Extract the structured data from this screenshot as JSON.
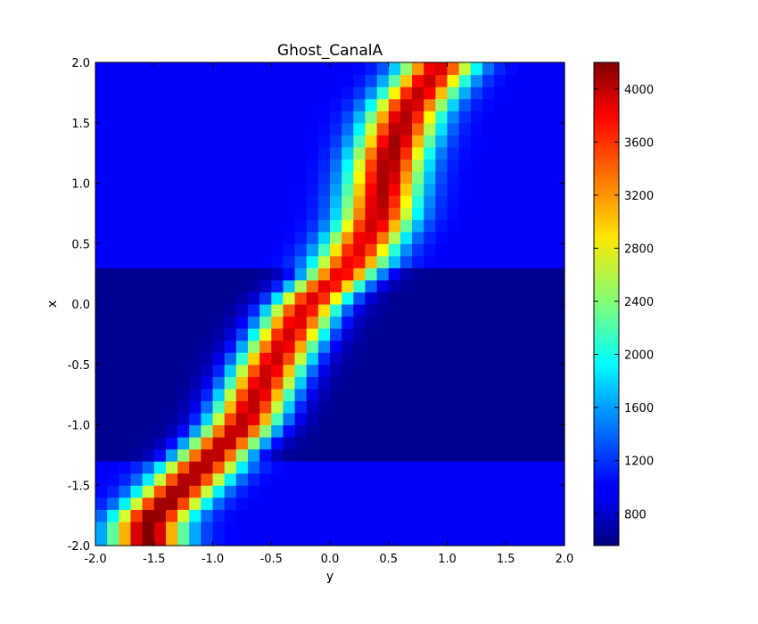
{
  "chart_data": {
    "type": "heatmap",
    "title": "Ghost_CanalA",
    "xlabel": "y",
    "ylabel": "x",
    "xlim": [
      -2.0,
      2.0
    ],
    "ylim": [
      -2.0,
      2.0
    ],
    "grid": false,
    "colormap": "jet",
    "color_range": [
      560,
      4200
    ],
    "x_ticks": [
      "-2.0",
      "-1.5",
      "-1.0",
      "-0.5",
      "0.0",
      "0.5",
      "1.0",
      "1.5",
      "2.0"
    ],
    "y_ticks": [
      "-2.0",
      "-1.5",
      "-1.0",
      "-0.5",
      "0.0",
      "0.5",
      "1.0",
      "1.5",
      "2.0"
    ],
    "colorbar_ticks": [
      "800",
      "1200",
      "1600",
      "2000",
      "2400",
      "2800",
      "3200",
      "3600",
      "4000"
    ],
    "colorbar_tick_values": [
      800,
      1200,
      1600,
      2000,
      2400,
      2800,
      3200,
      3600,
      4000
    ],
    "grid_size": [
      40,
      40
    ],
    "ridge": {
      "description": "diagonal band of high values",
      "centerline_points": [
        {
          "x": -1.8,
          "y": -1.55
        },
        {
          "x": -1.5,
          "y": -1.25
        },
        {
          "x": -1.0,
          "y": -0.75
        },
        {
          "x": -0.5,
          "y": -0.5
        },
        {
          "x": 0.0,
          "y": -0.2
        },
        {
          "x": 0.3,
          "y": 0.15
        },
        {
          "x": 0.7,
          "y": 0.4
        },
        {
          "x": 1.2,
          "y": 0.5
        },
        {
          "x": 1.6,
          "y": 0.65
        },
        {
          "x": 2.0,
          "y": 0.95
        }
      ],
      "peak_values": [
        {
          "x": -1.75,
          "y": -1.5,
          "value": 4200
        },
        {
          "x": -1.5,
          "y": -1.25,
          "value": 4100
        },
        {
          "x": 0.4,
          "y": 0.1,
          "value": 3800
        },
        {
          "x": 0.9,
          "y": 0.45,
          "value": 4050
        },
        {
          "x": 1.3,
          "y": 0.65,
          "value": 4100
        },
        {
          "x": 2.0,
          "y": 0.9,
          "value": 3900
        }
      ]
    },
    "background_regions": [
      {
        "x_range": [
          -2.0,
          -1.35
        ],
        "value": 1000
      },
      {
        "x_range": [
          -1.35,
          0.25
        ],
        "value": 620
      },
      {
        "x_range": [
          0.25,
          2.0
        ],
        "value": 1000
      }
    ]
  }
}
